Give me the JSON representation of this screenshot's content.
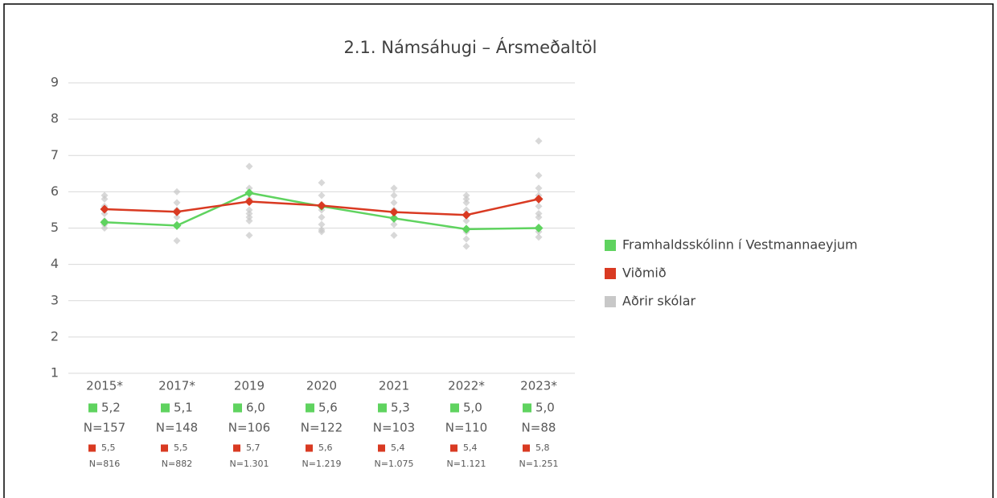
{
  "chart_data": {
    "type": "line",
    "title": "2.1. Námsáhugi – Ársmeðaltöl",
    "categories": [
      "2015*",
      "2017*",
      "2019",
      "2020",
      "2021",
      "2022*",
      "2023*"
    ],
    "ylim": [
      1,
      9
    ],
    "yticks": [
      1,
      2,
      3,
      4,
      5,
      6,
      7,
      8,
      9
    ],
    "grid": true,
    "legend": "right",
    "series": [
      {
        "name": "Framhaldsskólinn í Vestmannaeyjum",
        "color": "#5fd35f",
        "values": [
          5.16,
          5.07,
          5.97,
          5.6,
          5.27,
          4.97,
          5.0
        ],
        "value_labels": [
          "5,2",
          "5,1",
          "6,0",
          "5,6",
          "5,3",
          "5,0",
          "5,0"
        ],
        "n_labels": [
          "N=157",
          "N=148",
          "N=106",
          "N=122",
          "N=103",
          "N=110",
          "N=88"
        ]
      },
      {
        "name": "Viðmið",
        "color": "#d93a22",
        "values": [
          5.52,
          5.45,
          5.73,
          5.62,
          5.44,
          5.36,
          5.8
        ],
        "value_labels": [
          "5,5",
          "5,5",
          "5,7",
          "5,6",
          "5,4",
          "5,4",
          "5,8"
        ],
        "n_labels": [
          "N=816",
          "N=882",
          "N=1.301",
          "N=1.219",
          "N=1.075",
          "N=1.121",
          "N=1.251"
        ]
      },
      {
        "name": "Aðrir skólar",
        "color": "#c8c8c8",
        "type": "scatter",
        "values": [
          [
            5.9,
            5.8,
            5.6,
            5.4,
            5.2,
            5.1,
            5.0
          ],
          [
            6.0,
            5.7,
            5.5,
            5.3,
            5.1,
            4.65
          ],
          [
            6.7,
            6.1,
            5.8,
            5.5,
            5.4,
            5.3,
            5.2,
            4.8
          ],
          [
            6.25,
            5.9,
            5.5,
            5.3,
            5.1,
            4.95,
            4.9
          ],
          [
            6.1,
            5.9,
            5.7,
            5.5,
            5.3,
            5.1,
            4.8
          ],
          [
            5.9,
            5.8,
            5.7,
            5.5,
            5.2,
            4.9,
            4.7,
            4.5
          ],
          [
            7.4,
            6.45,
            6.1,
            5.9,
            5.6,
            5.4,
            5.3,
            4.9,
            4.75
          ]
        ]
      }
    ]
  }
}
